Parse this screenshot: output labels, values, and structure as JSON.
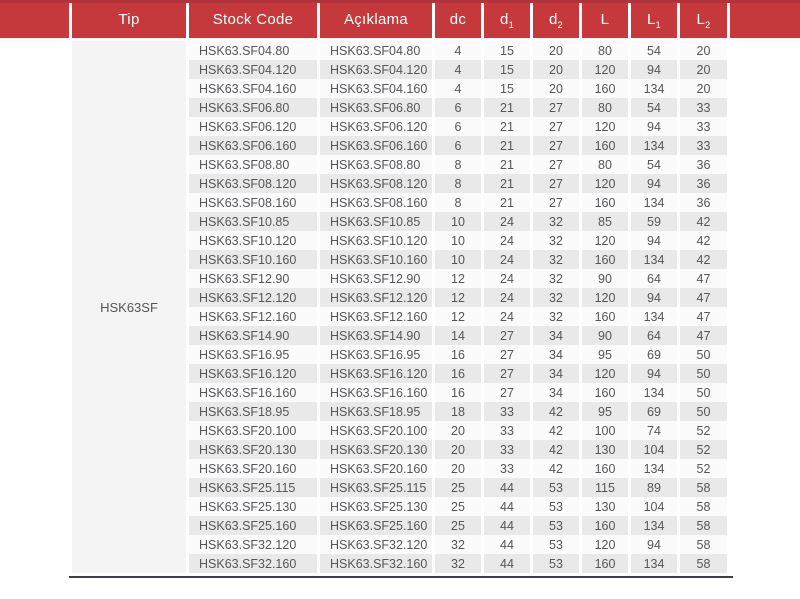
{
  "colors": {
    "header_red": "#c5393d",
    "top_accent_red": "#b2343a",
    "zebra_gray": "#e9e9e9",
    "row_light": "#fbfbfb",
    "tip_column_bg": "#f4f4f4",
    "body_text": "#55565a",
    "header_text": "#ffffff",
    "bottom_rule": "#3f4149"
  },
  "table": {
    "tip_label": "HSK63SF",
    "columns": [
      {
        "label": "Tip"
      },
      {
        "label": "Stock Code"
      },
      {
        "label": "Açıklama"
      },
      {
        "label": "dc"
      },
      {
        "label": "d",
        "sub": "1"
      },
      {
        "label": "d",
        "sub": "2"
      },
      {
        "label": "L"
      },
      {
        "label": "L",
        "sub": "1"
      },
      {
        "label": "L",
        "sub": "2"
      }
    ],
    "rows": [
      {
        "stock_code": "HSK63.SF04.80",
        "aciklama": "HSK63.SF04.80",
        "values": [
          "4",
          "15",
          "20",
          "80",
          "54",
          "20"
        ]
      },
      {
        "stock_code": "HSK63.SF04.120",
        "aciklama": "HSK63.SF04.120",
        "values": [
          "4",
          "15",
          "20",
          "120",
          "94",
          "20"
        ]
      },
      {
        "stock_code": "HSK63.SF04.160",
        "aciklama": "HSK63.SF04.160",
        "values": [
          "4",
          "15",
          "20",
          "160",
          "134",
          "20"
        ]
      },
      {
        "stock_code": "HSK63.SF06.80",
        "aciklama": "HSK63.SF06.80",
        "values": [
          "6",
          "21",
          "27",
          "80",
          "54",
          "33"
        ]
      },
      {
        "stock_code": "HSK63.SF06.120",
        "aciklama": "HSK63.SF06.120",
        "values": [
          "6",
          "21",
          "27",
          "120",
          "94",
          "33"
        ]
      },
      {
        "stock_code": "HSK63.SF06.160",
        "aciklama": "HSK63.SF06.160",
        "values": [
          "6",
          "21",
          "27",
          "160",
          "134",
          "33"
        ]
      },
      {
        "stock_code": "HSK63.SF08.80",
        "aciklama": "HSK63.SF08.80",
        "values": [
          "8",
          "21",
          "27",
          "80",
          "54",
          "36"
        ]
      },
      {
        "stock_code": "HSK63.SF08.120",
        "aciklama": "HSK63.SF08.120",
        "values": [
          "8",
          "21",
          "27",
          "120",
          "94",
          "36"
        ]
      },
      {
        "stock_code": "HSK63.SF08.160",
        "aciklama": "HSK63.SF08.160",
        "values": [
          "8",
          "21",
          "27",
          "160",
          "134",
          "36"
        ]
      },
      {
        "stock_code": "HSK63.SF10.85",
        "aciklama": "HSK63.SF10.85",
        "values": [
          "10",
          "24",
          "32",
          "85",
          "59",
          "42"
        ]
      },
      {
        "stock_code": "HSK63.SF10.120",
        "aciklama": "HSK63.SF10.120",
        "values": [
          "10",
          "24",
          "32",
          "120",
          "94",
          "42"
        ]
      },
      {
        "stock_code": "HSK63.SF10.160",
        "aciklama": "HSK63.SF10.160",
        "values": [
          "10",
          "24",
          "32",
          "160",
          "134",
          "42"
        ]
      },
      {
        "stock_code": "HSK63.SF12.90",
        "aciklama": "HSK63.SF12.90",
        "values": [
          "12",
          "24",
          "32",
          "90",
          "64",
          "47"
        ]
      },
      {
        "stock_code": "HSK63.SF12.120",
        "aciklama": "HSK63.SF12.120",
        "values": [
          "12",
          "24",
          "32",
          "120",
          "94",
          "47"
        ]
      },
      {
        "stock_code": "HSK63.SF12.160",
        "aciklama": "HSK63.SF12.160",
        "values": [
          "12",
          "24",
          "32",
          "160",
          "134",
          "47"
        ]
      },
      {
        "stock_code": "HSK63.SF14.90",
        "aciklama": "HSK63.SF14.90",
        "values": [
          "14",
          "27",
          "34",
          "90",
          "64",
          "47"
        ]
      },
      {
        "stock_code": "HSK63.SF16.95",
        "aciklama": "HSK63.SF16.95",
        "values": [
          "16",
          "27",
          "34",
          "95",
          "69",
          "50"
        ]
      },
      {
        "stock_code": "HSK63.SF16.120",
        "aciklama": "HSK63.SF16.120",
        "values": [
          "16",
          "27",
          "34",
          "120",
          "94",
          "50"
        ]
      },
      {
        "stock_code": "HSK63.SF16.160",
        "aciklama": "HSK63.SF16.160",
        "values": [
          "16",
          "27",
          "34",
          "160",
          "134",
          "50"
        ]
      },
      {
        "stock_code": "HSK63.SF18.95",
        "aciklama": "HSK63.SF18.95",
        "values": [
          "18",
          "33",
          "42",
          "95",
          "69",
          "50"
        ]
      },
      {
        "stock_code": "HSK63.SF20.100",
        "aciklama": "HSK63.SF20.100",
        "values": [
          "20",
          "33",
          "42",
          "100",
          "74",
          "52"
        ]
      },
      {
        "stock_code": "HSK63.SF20.130",
        "aciklama": "HSK63.SF20.130",
        "values": [
          "20",
          "33",
          "42",
          "130",
          "104",
          "52"
        ]
      },
      {
        "stock_code": "HSK63.SF20.160",
        "aciklama": "HSK63.SF20.160",
        "values": [
          "20",
          "33",
          "42",
          "160",
          "134",
          "52"
        ]
      },
      {
        "stock_code": "HSK63.SF25.115",
        "aciklama": "HSK63.SF25.115",
        "values": [
          "25",
          "44",
          "53",
          "115",
          "89",
          "58"
        ]
      },
      {
        "stock_code": "HSK63.SF25.130",
        "aciklama": "HSK63.SF25.130",
        "values": [
          "25",
          "44",
          "53",
          "130",
          "104",
          "58"
        ]
      },
      {
        "stock_code": "HSK63.SF25.160",
        "aciklama": "HSK63.SF25.160",
        "values": [
          "25",
          "44",
          "53",
          "160",
          "134",
          "58"
        ]
      },
      {
        "stock_code": "HSK63.SF32.120",
        "aciklama": "HSK63.SF32.120",
        "values": [
          "32",
          "44",
          "53",
          "120",
          "94",
          "58"
        ]
      },
      {
        "stock_code": "HSK63.SF32.160",
        "aciklama": "HSK63.SF32.160",
        "values": [
          "32",
          "44",
          "53",
          "160",
          "134",
          "58"
        ]
      }
    ]
  }
}
